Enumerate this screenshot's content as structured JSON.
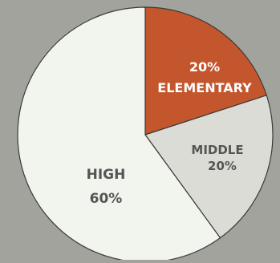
{
  "background_color": "#a3a39d",
  "chart_data": {
    "type": "pie",
    "slices": [
      {
        "category": "ELEMENTARY",
        "value": 20,
        "value_label": "20%",
        "color": "#c4562e",
        "text_color": "#ffffff"
      },
      {
        "category": "MIDDLE",
        "value": 20,
        "value_label": "20%",
        "color": "#dcdcd6",
        "text_color": "#555555"
      },
      {
        "category": "HIGH",
        "value": 60,
        "value_label": "60%",
        "color": "#f2f4ee",
        "text_color": "#555555"
      }
    ],
    "start_angle_deg": 0,
    "direction": "clockwise",
    "edge_color": "#3a3a3a",
    "title": "",
    "legend": "none"
  }
}
